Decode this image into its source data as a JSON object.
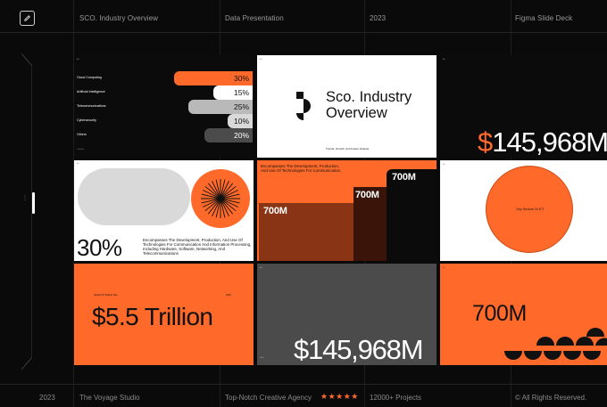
{
  "header": {
    "title": "SCO. Industry Overview",
    "section": "Data Presentation",
    "year": "2023",
    "type": "Figma Slide Deck"
  },
  "footer": {
    "year": "2023",
    "studio": "The Voyage Studio",
    "agency": "Top-Notch Creative Agency",
    "stars": "★★★★★",
    "projects": "12000+ Projects",
    "rights": "© All Rights Reserved."
  },
  "colors": {
    "accent": "#ff6a2b",
    "bg": "#0a0a0a"
  },
  "slides": {
    "s1": {
      "rows": [
        {
          "label": "Cloud Computing",
          "value": "30%",
          "fraction": 0.44,
          "color": "#ff6a2b",
          "text": "#111"
        },
        {
          "label": "Artificial Intelligence",
          "value": "15%",
          "fraction": 0.22,
          "color": "#ffffff",
          "text": "#111"
        },
        {
          "label": "Telecommunications",
          "value": "25%",
          "fraction": 0.36,
          "color": "#b9b9b9",
          "text": "#111"
        },
        {
          "label": "Cybersecurity",
          "value": "10%",
          "fraction": 0.14,
          "color": "#d9d9d9",
          "text": "#111"
        },
        {
          "label": "Others",
          "value": "20%",
          "fraction": 0.27,
          "color": "#4b4b4b",
          "text": "#fff"
        }
      ]
    },
    "s2": {
      "title_line1": "Sco. Industry",
      "title_line2": "Overview",
      "caption": "Trends, Growth, And Future Outlook"
    },
    "s3": {
      "big": "$145,968M"
    },
    "s4": {
      "pct": "30%",
      "para": "Encompasses The Development, Production, And Use Of Technologies For Communication And Information Processing, Including Hardware, Software, Networking, And Telecommunications"
    },
    "s5": {
      "para": "Encompasses The Development, Production, And Use Of Technologies For Communication.",
      "bars": [
        {
          "label": "700M",
          "color": "#8a3416"
        },
        {
          "label": "700M",
          "color": "#3a1408"
        },
        {
          "label": "700M",
          "color": "#0b0b0b"
        }
      ]
    },
    "s6": {
      "circle_label": "Key Sectors Of ICT"
    },
    "s7": {
      "caption": "Global ICT Market Size",
      "year": "2023",
      "big": "$5.5 Trillion"
    },
    "s8": {
      "big": "$145,968M"
    },
    "s9": {
      "big": "700M"
    }
  }
}
